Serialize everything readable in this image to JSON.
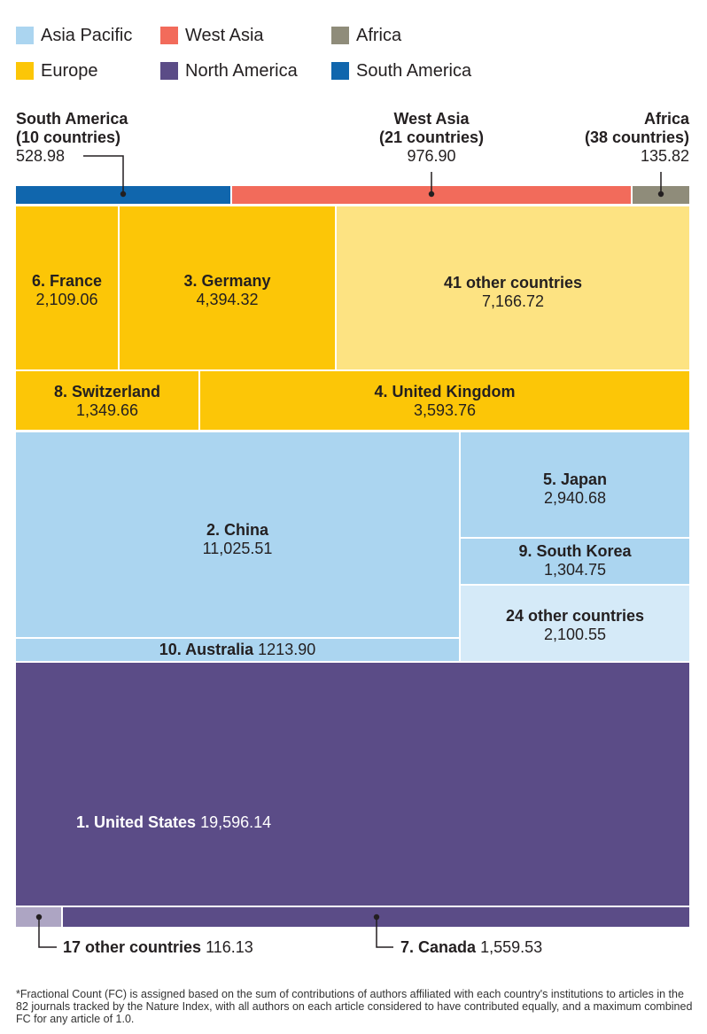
{
  "legend": [
    {
      "label": "Asia Pacific",
      "color": "#abd5f0"
    },
    {
      "label": "West Asia",
      "color": "#f26b5b"
    },
    {
      "label": "Africa",
      "color": "#8f8c7a"
    },
    {
      "label": "Europe",
      "color": "#fcc607"
    },
    {
      "label": "North America",
      "color": "#5b4c87"
    },
    {
      "label": "South America",
      "color": "#1066ad"
    }
  ],
  "chart_data": {
    "type": "treemap",
    "unit": "Fractional Count",
    "regions": [
      {
        "region": "South America",
        "name": "South America",
        "subtitle": "(10 countries)",
        "value": 528.98,
        "display": "528.98"
      },
      {
        "region": "West Asia",
        "name": "West Asia",
        "subtitle": "(21 countries)",
        "value": 976.9,
        "display": "976.90"
      },
      {
        "region": "Africa",
        "name": "Africa",
        "subtitle": "(38 countries)",
        "value": 135.82,
        "display": "135.82"
      }
    ],
    "cells": [
      {
        "region": "Europe",
        "name": "6. France",
        "value": 2109.06,
        "display": "2,109.06"
      },
      {
        "region": "Europe",
        "name": "3. Germany",
        "value": 4394.32,
        "display": "4,394.32"
      },
      {
        "region": "Europe",
        "name": "41 other countries",
        "value": 7166.72,
        "display": "7,166.72"
      },
      {
        "region": "Europe",
        "name": "8. Switzerland",
        "value": 1349.66,
        "display": "1,349.66"
      },
      {
        "region": "Europe",
        "name": "4. United Kingdom",
        "value": 3593.76,
        "display": "3,593.76"
      },
      {
        "region": "Asia Pacific",
        "name": "2. China",
        "value": 11025.51,
        "display": "11,025.51"
      },
      {
        "region": "Asia Pacific",
        "name": "5. Japan",
        "value": 2940.68,
        "display": "2,940.68"
      },
      {
        "region": "Asia Pacific",
        "name": "9. South Korea",
        "value": 1304.75,
        "display": "1,304.75"
      },
      {
        "region": "Asia Pacific",
        "name": "24 other countries",
        "value": 2100.55,
        "display": "2,100.55"
      },
      {
        "region": "Asia Pacific",
        "name": "10. Australia",
        "value": 1213.9,
        "display": "1213.90"
      },
      {
        "region": "North America",
        "name": "1. United States",
        "value": 19596.14,
        "display": "19,596.14"
      },
      {
        "region": "North America",
        "name": "17 other countries",
        "value": 116.13,
        "display": "116.13"
      },
      {
        "region": "North America",
        "name": "7. Canada",
        "value": 1559.53,
        "display": "1,559.53"
      }
    ]
  },
  "footnote": "*Fractional Count (FC) is assigned based on the sum of contributions of authors affiliated with each country's institutions to articles in the 82 journals tracked by the Nature Index, with all authors on each article considered to have contributed equally, and a maximum combined FC for any article of 1.0."
}
